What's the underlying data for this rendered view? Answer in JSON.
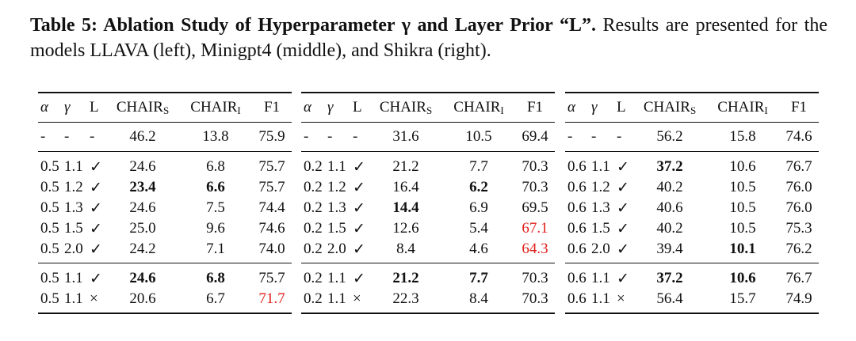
{
  "caption": {
    "bold": "Table 5: Ablation Study of Hyperparameter γ and Layer Prior “L”.",
    "text": "Results are presented for the models LLAVA (left), Minigpt4 (middle), and Shikra (right)."
  },
  "tables": [
    {
      "columns": [
        "α",
        "γ",
        "L",
        {
          "main": "CHAIR",
          "sub": "S"
        },
        {
          "main": "CHAIR",
          "sub": "I"
        },
        "F1"
      ],
      "row_groups": [
        [
          [
            "-",
            "-",
            "-",
            "46.2",
            "13.8",
            "75.9"
          ]
        ],
        [
          [
            "0.5",
            "1.1",
            "✓",
            "24.6",
            "6.8",
            "75.7"
          ],
          [
            "0.5",
            "1.2",
            "✓",
            {
              "text": "23.4",
              "style": "bold"
            },
            {
              "text": "6.6",
              "style": "bold"
            },
            "75.7"
          ],
          [
            "0.5",
            "1.3",
            "✓",
            "24.6",
            "7.5",
            "74.4"
          ],
          [
            "0.5",
            "1.5",
            "✓",
            "25.0",
            "9.6",
            "74.6"
          ],
          [
            "0.5",
            "2.0",
            "✓",
            "24.2",
            "7.1",
            "74.0"
          ]
        ],
        [
          [
            "0.5",
            "1.1",
            "✓",
            {
              "text": "24.6",
              "style": "bold"
            },
            {
              "text": "6.8",
              "style": "bold"
            },
            "75.7"
          ],
          [
            "0.5",
            "1.1",
            "×",
            "20.6",
            "6.7",
            {
              "text": "71.7",
              "style": "red"
            }
          ]
        ]
      ]
    },
    {
      "columns": [
        "α",
        "γ",
        "L",
        {
          "main": "CHAIR",
          "sub": "S"
        },
        {
          "main": "CHAIR",
          "sub": "I"
        },
        "F1"
      ],
      "row_groups": [
        [
          [
            "-",
            "-",
            "-",
            "31.6",
            "10.5",
            "69.4"
          ]
        ],
        [
          [
            "0.2",
            "1.1",
            "✓",
            "21.2",
            "7.7",
            "70.3"
          ],
          [
            "0.2",
            "1.2",
            "✓",
            "16.4",
            {
              "text": "6.2",
              "style": "bold"
            },
            "70.3"
          ],
          [
            "0.2",
            "1.3",
            "✓",
            {
              "text": "14.4",
              "style": "bold"
            },
            "6.9",
            "69.5"
          ],
          [
            "0.2",
            "1.5",
            "✓",
            "12.6",
            "5.4",
            {
              "text": "67.1",
              "style": "red"
            }
          ],
          [
            "0.2",
            "2.0",
            "✓",
            "8.4",
            "4.6",
            {
              "text": "64.3",
              "style": "red"
            }
          ]
        ],
        [
          [
            "0.2",
            "1.1",
            "✓",
            {
              "text": "21.2",
              "style": "bold"
            },
            {
              "text": "7.7",
              "style": "bold"
            },
            "70.3"
          ],
          [
            "0.2",
            "1.1",
            "×",
            "22.3",
            "8.4",
            "70.3"
          ]
        ]
      ]
    },
    {
      "columns": [
        "α",
        "γ",
        "L",
        {
          "main": "CHAIR",
          "sub": "S"
        },
        {
          "main": "CHAIR",
          "sub": "I"
        },
        "F1"
      ],
      "row_groups": [
        [
          [
            "-",
            "-",
            "-",
            "56.2",
            "15.8",
            "74.6"
          ]
        ],
        [
          [
            "0.6",
            "1.1",
            "✓",
            {
              "text": "37.2",
              "style": "bold"
            },
            "10.6",
            "76.7"
          ],
          [
            "0.6",
            "1.2",
            "✓",
            "40.2",
            "10.5",
            "76.0"
          ],
          [
            "0.6",
            "1.3",
            "✓",
            "40.6",
            "10.5",
            "76.0"
          ],
          [
            "0.6",
            "1.5",
            "✓",
            "40.2",
            "10.5",
            "75.3"
          ],
          [
            "0.6",
            "2.0",
            "✓",
            "39.4",
            {
              "text": "10.1",
              "style": "bold"
            },
            "76.2"
          ]
        ],
        [
          [
            "0.6",
            "1.1",
            "✓",
            {
              "text": "37.2",
              "style": "bold"
            },
            {
              "text": "10.6",
              "style": "bold"
            },
            "76.7"
          ],
          [
            "0.6",
            "1.1",
            "×",
            "56.4",
            "15.7",
            "74.9"
          ]
        ]
      ]
    }
  ]
}
